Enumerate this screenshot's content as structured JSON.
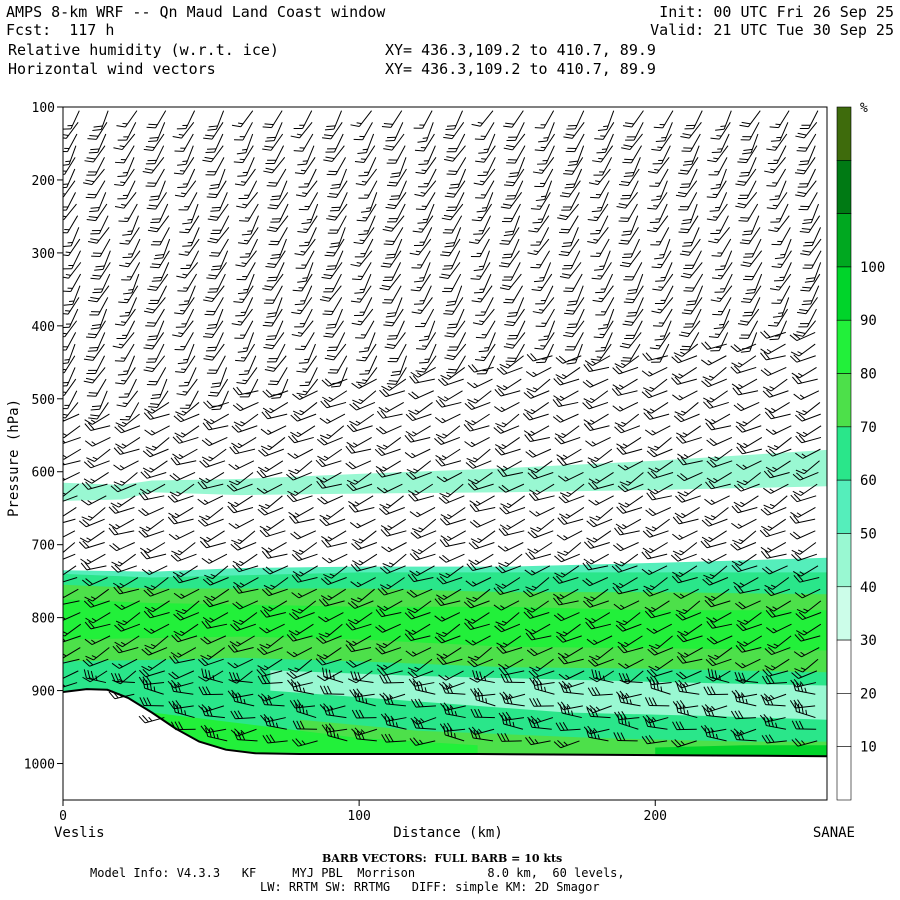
{
  "header": {
    "title": "AMPS 8-km WRF -- Qn Maud Land Coast window",
    "fcst": "Fcst:  117 h",
    "init": "Init: 00 UTC Fri 26 Sep 25",
    "valid": "Valid: 21 UTC Tue 30 Sep 25",
    "field1": "Relative humidity (w.r.t. ice)",
    "field2": "Horizontal wind vectors",
    "xy1": "XY= 436.3,109.2 to 410.7, 89.9",
    "xy2": "XY= 436.3,109.2 to 410.7, 89.9"
  },
  "footer": {
    "barb_note": "BARB VECTORS:  FULL BARB = 10 kts",
    "model_info_1": "Model Info: V4.3.3   KF     MYJ PBL  Morrison          8.0 km,  60 levels,",
    "model_info_2": "LW: RRTM SW: RRTMG   DIFF: simple KM: 2D Smagor"
  },
  "chart_data": {
    "type": "cross-section",
    "title": "Relative humidity (w.r.t. ice)",
    "xlabel": "Distance (km)",
    "ylabel": "Pressure (hPa)",
    "xlim": [
      0,
      258
    ],
    "ylim": [
      1050,
      100
    ],
    "x_ticks": [
      0,
      100,
      200
    ],
    "y_ticks": [
      100,
      200,
      300,
      400,
      500,
      600,
      700,
      800,
      900,
      1000
    ],
    "endpoints": {
      "left": "Veslis",
      "right": "SANAE"
    },
    "colorbar": {
      "unit": "%",
      "levels": [
        10,
        20,
        30,
        40,
        50,
        60,
        70,
        80,
        90,
        100
      ],
      "colors": [
        "#ffffff",
        "#ffffff",
        "#ffffff",
        "#ccfde9",
        "#99f8d2",
        "#55eebb",
        "#2ae68a",
        "#4de04a",
        "#22f03a",
        "#00d42a",
        "#00a820",
        "#007a14",
        "#3e6b0c"
      ]
    },
    "terrain_hpa": [
      [
        0,
        902
      ],
      [
        8,
        898
      ],
      [
        15,
        899
      ],
      [
        22,
        910
      ],
      [
        30,
        930
      ],
      [
        38,
        952
      ],
      [
        46,
        970
      ],
      [
        55,
        981
      ],
      [
        65,
        986
      ],
      [
        80,
        987
      ],
      [
        100,
        987
      ],
      [
        140,
        987
      ],
      [
        180,
        988
      ],
      [
        220,
        989
      ],
      [
        258,
        990
      ]
    ],
    "rh_bands": [
      {
        "rh": 35,
        "x": [
          0,
          20,
          30,
          60,
          100,
          150,
          200,
          258
        ],
        "top": [
          615,
          618,
          612,
          610,
          603,
          595,
          585,
          570
        ],
        "bottom": [
          640,
          638,
          628,
          632,
          630,
          628,
          625,
          620
        ]
      },
      {
        "rh": 45,
        "x": [
          0,
          30,
          60,
          100,
          150,
          200,
          258
        ],
        "top": [
          735,
          737,
          732,
          730,
          730,
          725,
          718
        ],
        "bottom": [
          990,
          985,
          985,
          986,
          987,
          988,
          990
        ]
      },
      {
        "rh": 55,
        "x": [
          0,
          30,
          60,
          100,
          150,
          200,
          258
        ],
        "top": [
          740,
          745,
          742,
          738,
          738,
          738,
          738
        ],
        "bottom": [
          985,
          980,
          980,
          982,
          984,
          985,
          987
        ]
      },
      {
        "rh": 65,
        "x": [
          0,
          30,
          60,
          100,
          150,
          200,
          258
        ],
        "top": [
          755,
          760,
          760,
          760,
          765,
          765,
          768
        ],
        "bottom": [
          860,
          858,
          855,
          860,
          868,
          870,
          875
        ]
      },
      {
        "rh": 75,
        "x": [
          0,
          30,
          60,
          100,
          150,
          200,
          258
        ],
        "top": [
          775,
          780,
          782,
          785,
          785,
          790,
          790
        ],
        "bottom": [
          830,
          828,
          826,
          830,
          840,
          842,
          845
        ]
      },
      {
        "rh": 35,
        "x": [
          70,
          120,
          170,
          220,
          258
        ],
        "top": [
          872,
          880,
          885,
          890,
          893
        ],
        "bottom": [
          900,
          915,
          930,
          935,
          940
        ]
      },
      {
        "rh": 65,
        "x": [
          80,
          120,
          180,
          230,
          258
        ],
        "top": [
          940,
          955,
          965,
          970,
          970
        ],
        "bottom": [
          990,
          990,
          990,
          990,
          990
        ]
      },
      {
        "rh": 75,
        "x": [
          30,
          60,
          100,
          140
        ],
        "top": [
          930,
          945,
          965,
          975
        ],
        "bottom": [
          985,
          985,
          986,
          987
        ]
      },
      {
        "rh": 85,
        "x": [
          200,
          230,
          258
        ],
        "top": [
          978,
          975,
          975
        ],
        "bottom": [
          988,
          989,
          990
        ]
      }
    ],
    "wind_profile_x": [
      5,
      15,
      25,
      35,
      45,
      55,
      65,
      75,
      85,
      95,
      105,
      115,
      125,
      135,
      145,
      155,
      165,
      175,
      185,
      195,
      205,
      215,
      225,
      235,
      245,
      255
    ],
    "upper_top_hpa": 105,
    "upper_bottom_hpa": [
      515,
      515,
      510,
      505,
      500,
      495,
      485,
      480,
      475,
      470,
      465,
      460,
      455,
      450,
      445,
      440,
      437,
      435,
      430,
      430,
      428,
      420,
      415,
      410,
      405,
      400
    ],
    "wind_speed_kts": [
      15,
      20,
      15,
      20,
      15,
      20,
      15,
      20,
      15,
      20,
      15,
      20,
      15,
      20,
      15,
      20,
      15,
      20,
      15,
      20,
      15,
      20,
      15,
      20,
      15,
      20
    ]
  }
}
